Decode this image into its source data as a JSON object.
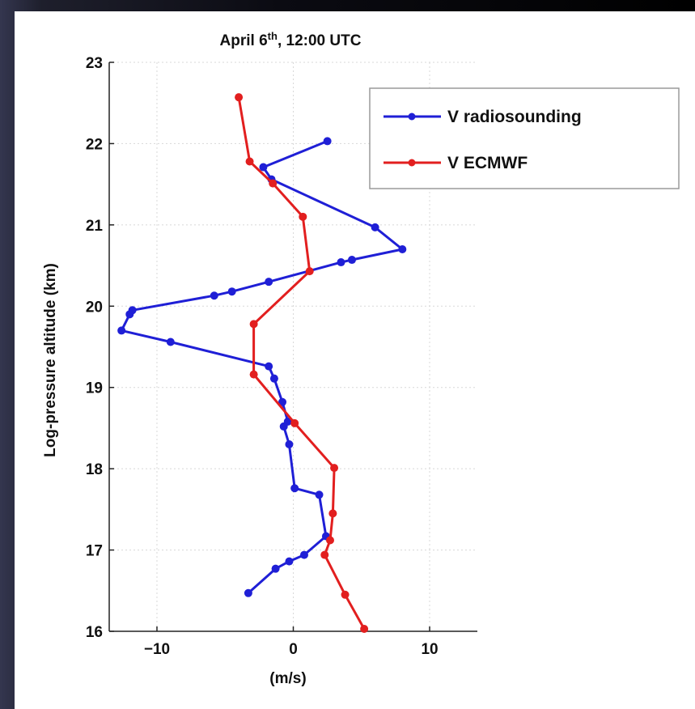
{
  "chart_data": {
    "type": "line",
    "title": "April 6th, 12:00 UTC",
    "title_parts": {
      "prefix": "April 6",
      "sup": "th",
      "suffix": ", 12:00 UTC"
    },
    "xlabel": "(m/s)",
    "ylabel": "Log-pressure altitude (km)",
    "xlim": [
      -13.5,
      13.5
    ],
    "ylim": [
      16,
      23
    ],
    "x_ticks": [
      -10,
      0,
      10
    ],
    "y_ticks": [
      16,
      17,
      18,
      19,
      20,
      21,
      22,
      23
    ],
    "grid": true,
    "legend_position": "top-right",
    "series": [
      {
        "name": "V radiosounding",
        "color": "#1f1fd6",
        "points": [
          [
            2.5,
            22.03
          ],
          [
            -2.2,
            21.71
          ],
          [
            -1.6,
            21.56
          ],
          [
            6.0,
            20.97
          ],
          [
            8.0,
            20.7
          ],
          [
            4.3,
            20.57
          ],
          [
            3.5,
            20.54
          ],
          [
            -1.8,
            20.3
          ],
          [
            -4.5,
            20.18
          ],
          [
            -5.8,
            20.13
          ],
          [
            -11.8,
            19.95
          ],
          [
            -12.0,
            19.9
          ],
          [
            -12.6,
            19.7
          ],
          [
            -9.0,
            19.56
          ],
          [
            -1.8,
            19.26
          ],
          [
            -1.4,
            19.11
          ],
          [
            -0.8,
            18.82
          ],
          [
            -0.4,
            18.58
          ],
          [
            -0.7,
            18.52
          ],
          [
            -0.3,
            18.3
          ],
          [
            0.1,
            17.76
          ],
          [
            1.9,
            17.68
          ],
          [
            2.4,
            17.17
          ],
          [
            0.8,
            16.94
          ],
          [
            -0.3,
            16.86
          ],
          [
            -1.3,
            16.77
          ],
          [
            -3.3,
            16.47
          ]
        ]
      },
      {
        "name": "V ECMWF",
        "color": "#e21f1f",
        "points": [
          [
            -4.0,
            22.57
          ],
          [
            -3.2,
            21.78
          ],
          [
            -1.5,
            21.51
          ],
          [
            0.7,
            21.1
          ],
          [
            1.2,
            20.43
          ],
          [
            -2.9,
            19.78
          ],
          [
            -2.9,
            19.16
          ],
          [
            0.1,
            18.56
          ],
          [
            3.0,
            18.01
          ],
          [
            2.9,
            17.45
          ],
          [
            2.7,
            17.12
          ],
          [
            2.3,
            16.94
          ],
          [
            3.8,
            16.45
          ],
          [
            5.2,
            16.03
          ]
        ]
      }
    ]
  }
}
